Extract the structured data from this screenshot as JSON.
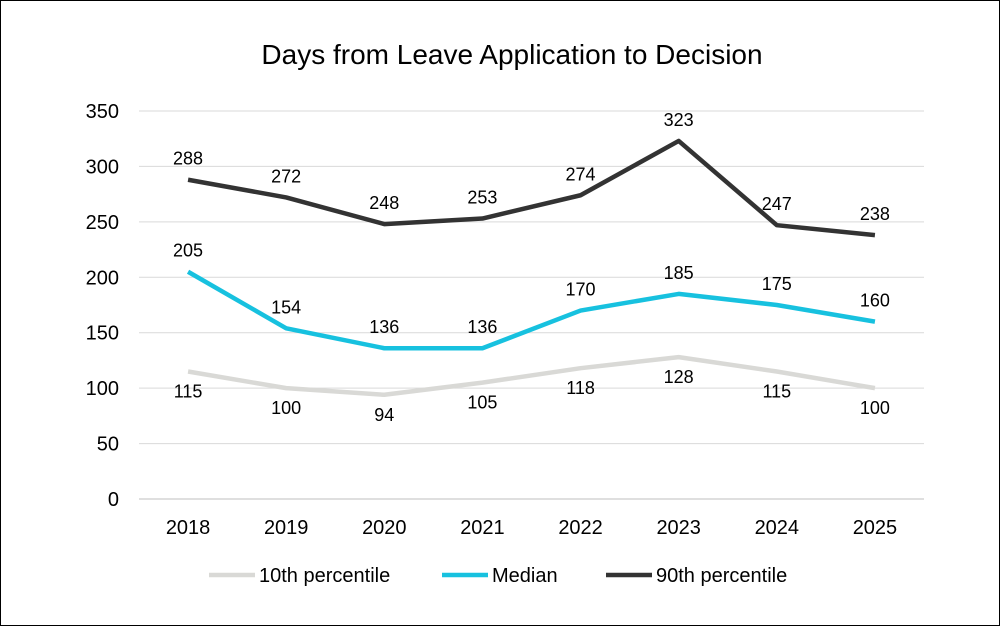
{
  "chart_data": {
    "type": "line",
    "title": "Days from Leave Application to Decision",
    "categories": [
      "2018",
      "2019",
      "2020",
      "2021",
      "2022",
      "2023",
      "2024",
      "2025"
    ],
    "series": [
      {
        "name": "10th percentile",
        "color": "#d9d9d6",
        "values": [
          115,
          100,
          94,
          105,
          118,
          128,
          115,
          100
        ],
        "label_position": "below"
      },
      {
        "name": "Median",
        "color": "#17c1df",
        "values": [
          205,
          154,
          136,
          136,
          170,
          185,
          175,
          160
        ],
        "label_position": "above"
      },
      {
        "name": "90th percentile",
        "color": "#333333",
        "values": [
          288,
          272,
          248,
          253,
          274,
          323,
          247,
          238
        ],
        "label_position": "above"
      }
    ],
    "ylim": [
      0,
      350
    ],
    "yticks": [
      0,
      50,
      100,
      150,
      200,
      250,
      300,
      350
    ],
    "grid": true,
    "legend_position": "bottom",
    "xlabel": "",
    "ylabel": ""
  }
}
